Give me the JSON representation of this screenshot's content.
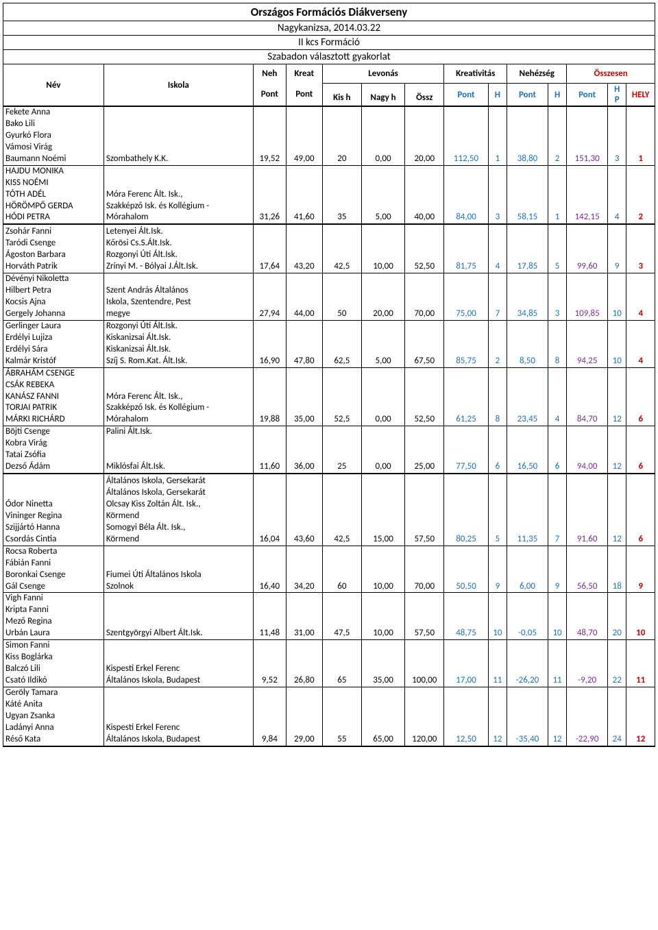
{
  "title": "Országos Formációs Diákverseny",
  "location_date": "Nagykanizsa, 2014.03.22",
  "category": "II kcs Formáció",
  "exercise": "Szabadon választott gyakorlat",
  "headers": {
    "nev": "Név",
    "iskola": "Iskola",
    "neh_pont_top": "Neh",
    "neh_pont_bot": "Pont",
    "kreat_pont_top": "Kreat",
    "kreat_pont_bot": "Pont",
    "levonas": "Levonás",
    "kish": "Kis h",
    "nagyh": "Nagy h",
    "ossz": "Össz",
    "kreativitas": "Kreativitás",
    "nehezseg": "Nehézség",
    "osszesen": "Összesen",
    "pont": "Pont",
    "h": "H",
    "hp_top": "H",
    "hp_bot": "P",
    "hely": "HELY"
  },
  "rows": [
    {
      "names": [
        "Fekete Anna",
        "Bako Lili",
        "Gyurkó Flora",
        "Vámosi Virág",
        "Baumann Noémi"
      ],
      "schools": [
        "",
        "",
        "",
        "",
        "Szombathely K.K."
      ],
      "neh": "19,52",
      "kreat": "49,00",
      "kish": "20",
      "nagyh": "0,00",
      "ossz": "20,00",
      "kpont": "112,50",
      "kh": "1",
      "npont": "38,80",
      "nh": "2",
      "opont": "151,30",
      "hp": "3",
      "hely": "1",
      "top": "thick"
    },
    {
      "names": [
        "HAJDU MONIKA",
        "KISS NOÉMI",
        "TÓTH ADÉL",
        "HÖRÖMPŐ GERDA",
        "HÓDI PETRA"
      ],
      "schools": [
        "",
        "",
        "Móra Ferenc Ált. Isk.,",
        "Szakképző Isk. és Kollégium -",
        "Mórahalom"
      ],
      "neh": "31,26",
      "kreat": "41,60",
      "kish": "35",
      "nagyh": "5,00",
      "ossz": "40,00",
      "kpont": "84,00",
      "kh": "3",
      "npont": "58,15",
      "nh": "1",
      "opont": "142,15",
      "hp": "4",
      "hely": "2",
      "top": "thin"
    },
    {
      "names": [
        "",
        "Zsohár Fanni",
        "Taródi Csenge",
        "Ágoston Barbara",
        "Horváth Patrik"
      ],
      "schools": [
        "",
        "Letenyei Ált.Isk.",
        "Kőrösi Cs.S.Ált.Isk.",
        "Rozgonyi Úti Ált.Isk.",
        "Zrínyi M. - Bólyai J.Ált.Isk."
      ],
      "neh": "17,64",
      "kreat": "43,20",
      "kish": "42,5",
      "nagyh": "10,00",
      "ossz": "52,50",
      "kpont": "81,75",
      "kh": "4",
      "npont": "17,85",
      "nh": "5",
      "opont": "99,60",
      "hp": "9",
      "hely": "3",
      "top": "thick"
    },
    {
      "names": [
        "Dévényi Nikoletta",
        "Hilbert Petra",
        "Kocsis Ajna",
        "Gergely Johanna"
      ],
      "schools": [
        "",
        "Szent András Általános",
        "Iskola, Szentendre, Pest",
        "megye"
      ],
      "neh": "27,94",
      "kreat": "44,00",
      "kish": "50",
      "nagyh": "20,00",
      "ossz": "70,00",
      "kpont": "75,00",
      "kh": "7",
      "npont": "34,85",
      "nh": "3",
      "opont": "109,85",
      "hp": "10",
      "hely": "4",
      "top": "thin"
    },
    {
      "names": [
        "Gerlinger Laura",
        "Erdélyi Lujiza",
        "Erdélyi Sára",
        "Kalmár Kristóf"
      ],
      "schools": [
        "Rozgonyi Úti Ált.Isk.",
        "Kiskanizsai Ált.Isk.",
        "Kiskanizsai Ált.Isk.",
        "Szíj S. Rom.Kat. Ált.Isk."
      ],
      "neh": "16,90",
      "kreat": "47,80",
      "kish": "62,5",
      "nagyh": "5,00",
      "ossz": "67,50",
      "kpont": "85,75",
      "kh": "2",
      "npont": "8,50",
      "nh": "8",
      "opont": "94,25",
      "hp": "10",
      "hely": "4",
      "top": "thin"
    },
    {
      "names": [
        "ÁBRAHÁM CSENGE",
        "CSÁK REBEKA",
        "KANÁSZ FANNI",
        "TORJAI PATRIK",
        "MÁRKI RICHÁRD"
      ],
      "schools": [
        "",
        "",
        "Móra Ferenc Ált. Isk.,",
        "Szakképző Isk. és Kollégium -",
        "Mórahalom"
      ],
      "neh": "19,88",
      "kreat": "35,00",
      "kish": "52,5",
      "nagyh": "0,00",
      "ossz": "52,50",
      "kpont": "61,25",
      "kh": "8",
      "npont": "23,45",
      "nh": "4",
      "opont": "84,70",
      "hp": "12",
      "hely": "6",
      "top": "thin"
    },
    {
      "names": [
        "Böjti Csenge",
        "Kobra Virág",
        "Tatai Zsófia",
        "Dezső Ádám"
      ],
      "schools": [
        " Palini Ált.Isk.",
        "",
        "",
        "Miklósfai Ált.Isk."
      ],
      "neh": "11,60",
      "kreat": "36,00",
      "kish": "25",
      "nagyh": "0,00",
      "ossz": "25,00",
      "kpont": "77,50",
      "kh": "6",
      "npont": "16,50",
      "nh": "6",
      "opont": "94,00",
      "hp": "12",
      "hely": "6",
      "top": "thin"
    },
    {
      "names": [
        "",
        "",
        "",
        "Ódor Ninetta",
        "Vininger Regina",
        "Szijjártó Hanna",
        "Csordás Cintia"
      ],
      "schools": [
        "",
        "Általános Iskola, Gersekarát",
        "Általános Iskola, Gersekarát",
        "Olcsay Kiss Zoltán Ált. Isk.,",
        "Körmend",
        "Somogyi Béla Ált. Isk.,",
        "Körmend"
      ],
      "neh": "16,04",
      "kreat": "43,60",
      "kish": "42,5",
      "nagyh": "15,00",
      "ossz": "57,50",
      "kpont": "80,25",
      "kh": "5",
      "npont": "11,35",
      "nh": "7",
      "opont": "91,60",
      "hp": "12",
      "hely": "6",
      "top": "thick"
    },
    {
      "names": [
        "Rocsa Roberta",
        "Fábián Fanni",
        "Boronkai Csenge",
        "Gál Csenge"
      ],
      "schools": [
        "",
        "",
        "Fiumei Úti Általános Iskola",
        "Szolnok"
      ],
      "neh": "16,40",
      "kreat": "34,20",
      "kish": "60",
      "nagyh": "10,00",
      "ossz": "70,00",
      "kpont": "50,50",
      "kh": "9",
      "npont": "6,00",
      "nh": "9",
      "opont": "56,50",
      "hp": "18",
      "hely": "9",
      "top": "thin"
    },
    {
      "names": [
        "Vigh Fanni",
        "Kripta Fanni",
        "Mező Regina",
        "Urbán Laura"
      ],
      "schools": [
        "",
        "",
        "",
        "Szentgyörgyi Albert Ált.Isk."
      ],
      "neh": "11,48",
      "kreat": "31,00",
      "kish": "47,5",
      "nagyh": "10,00",
      "ossz": "57,50",
      "kpont": "48,75",
      "kh": "10",
      "npont": "-0,05",
      "nh": "10",
      "opont": "48,70",
      "hp": "20",
      "hely": "10",
      "top": "thin"
    },
    {
      "names": [
        "Simon Fanni",
        "Kiss Boglárka",
        "Balczó Lili",
        "Csató Ildikó"
      ],
      "schools": [
        "",
        "",
        "Kispesti Erkel Ferenc",
        "Általános Iskola, Budapest"
      ],
      "neh": "9,52",
      "kreat": "26,80",
      "kish": "65",
      "nagyh": "35,00",
      "ossz": "100,00",
      "kpont": "17,00",
      "kh": "11",
      "npont": "-26,20",
      "nh": "11",
      "opont": "-9,20",
      "hp": "22",
      "hely": "11",
      "top": "thin"
    },
    {
      "names": [
        "Geröly Tamara",
        "Káté Anita",
        "Ugyan Zsanka",
        "Ladányi Anna",
        "Réső Kata"
      ],
      "schools": [
        "",
        "",
        "",
        "Kispesti Erkel Ferenc",
        "Általános Iskola, Budapest"
      ],
      "neh": "9,84",
      "kreat": "29,00",
      "kish": "55",
      "nagyh": "65,00",
      "ossz": "120,00",
      "kpont": "12,50",
      "kh": "12",
      "npont": "-35,40",
      "nh": "12",
      "opont": "-22,90",
      "hp": "24",
      "hely": "12",
      "top": "thin",
      "bottom": "thick"
    }
  ]
}
